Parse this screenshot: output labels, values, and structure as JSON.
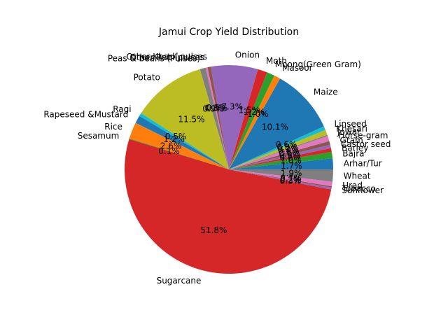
{
  "chart_data": {
    "type": "pie",
    "title": "Jamui Crop Yield Distribution",
    "start_angle_deg": 0,
    "direction": "counterclockwise",
    "legend": "none",
    "slices": [
      {
        "label": "Arhar/Tur",
        "value": 1.7,
        "pct_label": "1.7%",
        "color": "#1f77b4"
      },
      {
        "label": "Bajra",
        "value": 1.0,
        "pct_label": "1.0%",
        "color": "#2ca02c"
      },
      {
        "label": "Barley",
        "value": 0.6,
        "pct_label": "0.6%",
        "color": "#d62728"
      },
      {
        "label": "Castor seed",
        "value": 0.5,
        "pct_label": "0.5%",
        "color": "#9467bd"
      },
      {
        "label": "Gram",
        "value": 0.6,
        "pct_label": "0.6%",
        "color": "#8c564b"
      },
      {
        "label": "Horse-gram",
        "value": 0.8,
        "pct_label": "0.8%",
        "color": "#e377c2"
      },
      {
        "label": "Jowar",
        "value": 0.2,
        "pct_label": "0.2%",
        "color": "#7f7f7f"
      },
      {
        "label": "Khesari",
        "value": 0.8,
        "pct_label": "0.8%",
        "color": "#bcbd22"
      },
      {
        "label": "Linseed",
        "value": 0.6,
        "pct_label": "0.6%",
        "color": "#17becf"
      },
      {
        "label": "Maize",
        "value": 10.1,
        "pct_label": "10.1%",
        "color": "#1f77b4"
      },
      {
        "label": "Masoor",
        "value": 1.0,
        "pct_label": "1.0%",
        "color": "#ff7f0e"
      },
      {
        "label": "Moong(Green Gram)",
        "value": 1.2,
        "pct_label": "1.2%",
        "color": "#2ca02c"
      },
      {
        "label": "Moth",
        "value": 1.5,
        "pct_label": "1.5%",
        "color": "#d62728"
      },
      {
        "label": "Onion",
        "value": 7.3,
        "pct_label": "7.3%",
        "color": "#9467bd"
      },
      {
        "label": "Other Kharif pulses",
        "value": 0.5,
        "pct_label": "0.5%",
        "color": "#8c564b"
      },
      {
        "label": "Other Rabi pulses",
        "value": 0.3,
        "pct_label": "0.3%",
        "color": "#e377c2"
      },
      {
        "label": "Peas & beans (Pulses)",
        "value": 0.9,
        "pct_label": "0.9%",
        "color": "#7f7f7f"
      },
      {
        "label": "Potato",
        "value": 11.5,
        "pct_label": "11.5%",
        "color": "#bcbd22"
      },
      {
        "label": "Ragi",
        "value": 0.5,
        "pct_label": "0.5%",
        "color": "#17becf"
      },
      {
        "label": "Rapeseed &Mustard",
        "value": 1.2,
        "pct_label": "1.2%",
        "color": "#1f77b4"
      },
      {
        "label": "Rice",
        "value": 2.6,
        "pct_label": "2.6%",
        "color": "#ff7f0e"
      },
      {
        "label": "Sesamum",
        "value": 0.1,
        "pct_label": "0.1%",
        "color": "#2ca02c"
      },
      {
        "label": "Sugarcane",
        "value": 51.8,
        "pct_label": "51.8%",
        "color": "#d62728"
      },
      {
        "label": "Sunflower",
        "value": 0.3,
        "pct_label": "0.3%",
        "color": "#9467bd"
      },
      {
        "label": "Tobacco",
        "value": 0.2,
        "pct_label": "0.2%",
        "color": "#8c564b"
      },
      {
        "label": "Urad",
        "value": 0.7,
        "pct_label": "0.7%",
        "color": "#e377c2"
      },
      {
        "label": "Wheat",
        "value": 1.9,
        "pct_label": "1.9%",
        "color": "#7f7f7f"
      }
    ]
  }
}
